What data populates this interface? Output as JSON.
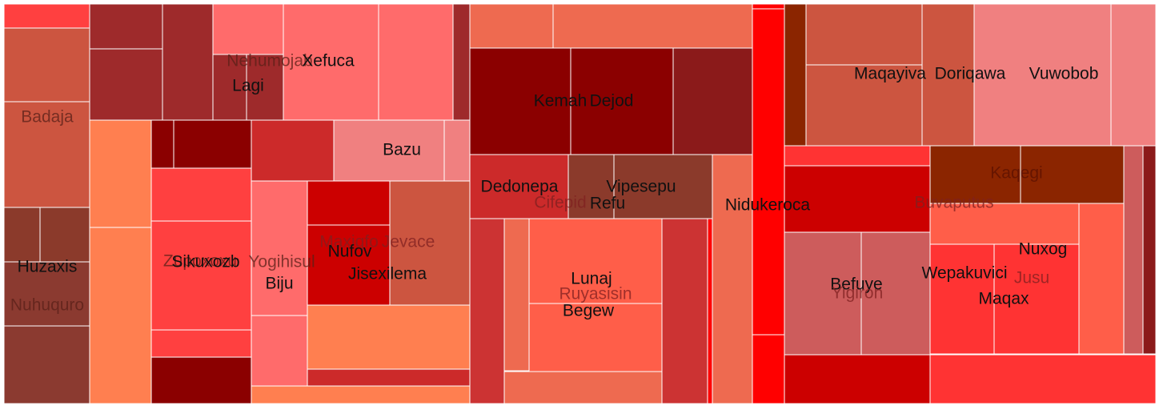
{
  "chart_data": {
    "type": "treemap",
    "title": "",
    "labels": [
      {
        "text": "Badaja",
        "group": "A",
        "fade": true
      },
      {
        "text": "Huzaxis",
        "group": "A",
        "fade": false
      },
      {
        "text": "Nuhuquro",
        "group": "A",
        "fade": true
      },
      {
        "text": "Nehumojab",
        "group": "B",
        "fade": true
      },
      {
        "text": "Xefuca",
        "group": "B",
        "fade": false
      },
      {
        "text": "Lagi",
        "group": "B",
        "fade": false
      },
      {
        "text": "Bazu",
        "group": "B",
        "fade": false
      },
      {
        "text": "Zupoxoxu",
        "group": "B",
        "fade": true
      },
      {
        "text": "Sikuxozb",
        "group": "B",
        "fade": false
      },
      {
        "text": "Yogihisul",
        "group": "B",
        "fade": true
      },
      {
        "text": "Biju",
        "group": "B",
        "fade": false
      },
      {
        "text": "Maxiqfo",
        "group": "B",
        "fade": true
      },
      {
        "text": "Nufov",
        "group": "B",
        "fade": false
      },
      {
        "text": "Jevace",
        "group": "B",
        "fade": true
      },
      {
        "text": "Jisexilema",
        "group": "B",
        "fade": false
      },
      {
        "text": "Kemah",
        "group": "C",
        "fade": false
      },
      {
        "text": "Dejod",
        "group": "C",
        "fade": false
      },
      {
        "text": "Dedonepa",
        "group": "C",
        "fade": false
      },
      {
        "text": "Cifepid",
        "group": "C",
        "fade": true
      },
      {
        "text": "Refu",
        "group": "C",
        "fade": false
      },
      {
        "text": "Vipesepu",
        "group": "C",
        "fade": false
      },
      {
        "text": "Lunaj",
        "group": "C",
        "fade": false
      },
      {
        "text": "Ruyasisin",
        "group": "C",
        "fade": true
      },
      {
        "text": "Begew",
        "group": "C",
        "fade": false
      },
      {
        "text": "Nidukeroca",
        "group": "C",
        "fade": false
      },
      {
        "text": "Maqayiva",
        "group": "D",
        "fade": false
      },
      {
        "text": "Doriqawa",
        "group": "D",
        "fade": false
      },
      {
        "text": "Vuwobob",
        "group": "D",
        "fade": false
      },
      {
        "text": "Kaqegi",
        "group": "D",
        "fade": true
      },
      {
        "text": "Buvaputus",
        "group": "D",
        "fade": true
      },
      {
        "text": "Befuye",
        "group": "D",
        "fade": false
      },
      {
        "text": "Yigiron",
        "group": "D",
        "fade": true
      },
      {
        "text": "Wepakuvici",
        "group": "D",
        "fade": false
      },
      {
        "text": "Nuxog",
        "group": "D",
        "fade": false
      },
      {
        "text": "Jusu",
        "group": "D",
        "fade": true
      },
      {
        "text": "Maqax",
        "group": "D",
        "fade": false
      }
    ],
    "colors": {
      "darkred": "#8b0000",
      "firebrick": "#9e2a2b",
      "red": "#ff0000",
      "tomato": "#ff5e49",
      "salmon": "#ff6b6b",
      "coral": "#ff7f50",
      "indianred": "#cd5c5c",
      "lightcoral": "#f08080",
      "sienna": "#8b3a2b",
      "rust": "#8b2500"
    }
  }
}
